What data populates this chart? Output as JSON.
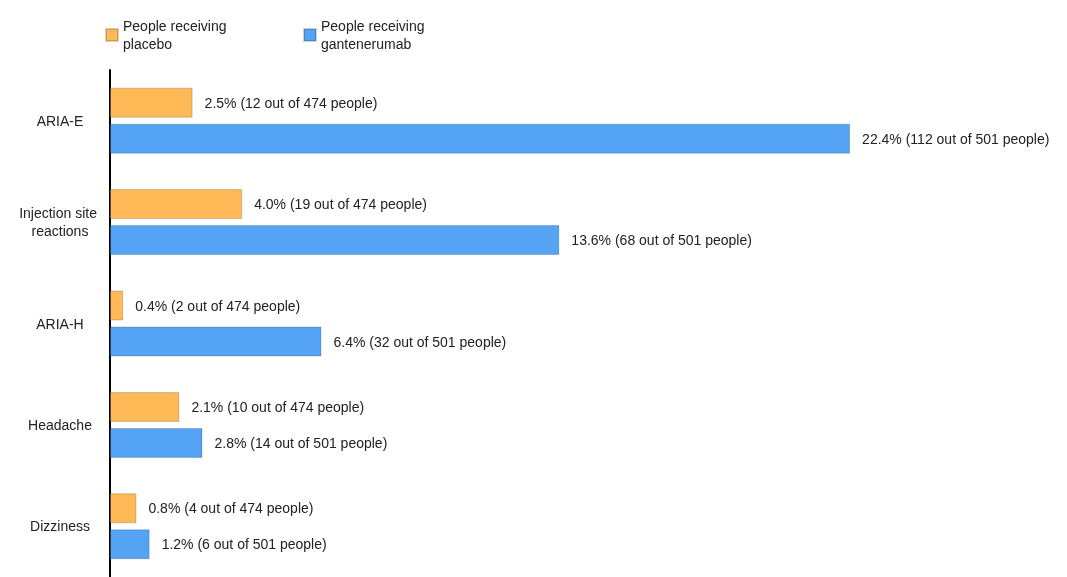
{
  "chart_data": {
    "type": "bar",
    "orientation": "horizontal",
    "categories": [
      "ARIA-E",
      "Injection site reactions",
      "ARIA-H",
      "Headache",
      "Dizziness"
    ],
    "series": [
      {
        "name": "People receiving placebo",
        "color": "#ffb957",
        "values": [
          2.5,
          4.0,
          0.4,
          2.1,
          0.8
        ],
        "value_labels": [
          "2.5% (12 out of 474 people)",
          "4.0% (19 out of 474 people)",
          "0.4% (2 out of 474 people)",
          "2.1% (10 out of 474 people)",
          "0.8% (4 out of 474 people)"
        ]
      },
      {
        "name": "People receiving gantenerumab",
        "color": "#55a3f5",
        "values": [
          22.4,
          13.6,
          6.4,
          2.8,
          1.2
        ],
        "value_labels": [
          "22.4% (112 out of 501 people)",
          "13.6% (68 out of 501 people)",
          "6.4% (32 out of 501 people)",
          "2.8% (14 out of 501 people)",
          "1.2% (6 out of 501 people)"
        ]
      }
    ],
    "legend": "top left",
    "grid": false
  }
}
